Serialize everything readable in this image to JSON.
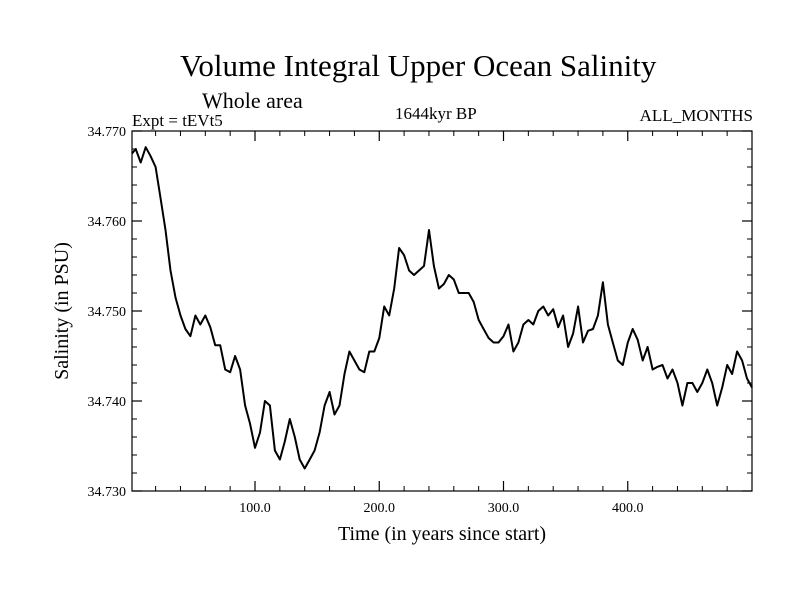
{
  "chart_data": {
    "type": "line",
    "title": "Volume Integral Upper Ocean Salinity",
    "subtitle": "Whole area",
    "header_left": "Expt = tEVt5",
    "header_center": "1644kyr BP",
    "header_right": "ALL_MONTHS",
    "xlabel": "Time (in years since start)",
    "ylabel": "Salinity (in PSU)",
    "xlim": [
      1,
      500
    ],
    "ylim": [
      34.73,
      34.77
    ],
    "x_ticks": [
      100,
      200,
      300,
      400
    ],
    "x_tick_labels": [
      "100.0",
      "200.0",
      "300.0",
      "400.0"
    ],
    "y_ticks": [
      34.73,
      34.74,
      34.75,
      34.76,
      34.77
    ],
    "y_tick_labels": [
      "34.730",
      "34.740",
      "34.750",
      "34.760",
      "34.770"
    ],
    "series": [
      {
        "name": "Salinity",
        "x": [
          1,
          4,
          8,
          12,
          16,
          20,
          24,
          28,
          32,
          36,
          40,
          44,
          48,
          52,
          56,
          60,
          64,
          68,
          72,
          76,
          80,
          84,
          88,
          92,
          96,
          100,
          104,
          108,
          112,
          116,
          120,
          124,
          128,
          132,
          136,
          140,
          144,
          148,
          152,
          156,
          160,
          164,
          168,
          172,
          176,
          180,
          184,
          188,
          192,
          196,
          200,
          204,
          208,
          212,
          216,
          220,
          224,
          228,
          232,
          236,
          240,
          244,
          248,
          252,
          256,
          260,
          264,
          268,
          272,
          276,
          280,
          284,
          288,
          292,
          296,
          300,
          304,
          308,
          312,
          316,
          320,
          324,
          328,
          332,
          336,
          340,
          344,
          348,
          352,
          356,
          360,
          364,
          368,
          372,
          376,
          380,
          384,
          388,
          392,
          396,
          400,
          404,
          408,
          412,
          416,
          420,
          424,
          428,
          432,
          436,
          440,
          444,
          448,
          452,
          456,
          460,
          464,
          468,
          472,
          476,
          480,
          484,
          488,
          492,
          496,
          500
        ],
        "values": [
          34.7675,
          34.768,
          34.7665,
          34.7682,
          34.7672,
          34.766,
          34.7625,
          34.759,
          34.7545,
          34.7515,
          34.7495,
          34.748,
          34.7472,
          34.7495,
          34.7485,
          34.7495,
          34.7482,
          34.7462,
          34.7462,
          34.7435,
          34.7432,
          34.745,
          34.7435,
          34.7395,
          34.7375,
          34.7348,
          34.7365,
          34.74,
          34.7395,
          34.7345,
          34.7335,
          34.7355,
          34.738,
          34.736,
          34.7335,
          34.7325,
          34.7335,
          34.7345,
          34.7365,
          34.7395,
          34.741,
          34.7385,
          34.7395,
          34.743,
          34.7455,
          34.7445,
          34.7435,
          34.7432,
          34.7455,
          34.7455,
          34.747,
          34.7505,
          34.7495,
          34.7525,
          34.757,
          34.7562,
          34.7545,
          34.754,
          34.7545,
          34.755,
          34.759,
          34.755,
          34.7525,
          34.753,
          34.754,
          34.7535,
          34.752,
          34.752,
          34.752,
          34.751,
          34.749,
          34.748,
          34.747,
          34.7465,
          34.7465,
          34.7472,
          34.7485,
          34.7455,
          34.7465,
          34.7485,
          34.749,
          34.7485,
          34.75,
          34.7505,
          34.7495,
          34.7502,
          34.7482,
          34.7495,
          34.746,
          34.7475,
          34.7505,
          34.7465,
          34.7478,
          34.748,
          34.7495,
          34.7532,
          34.7485,
          34.7465,
          34.7445,
          34.744,
          34.7465,
          34.748,
          34.7468,
          34.7445,
          34.746,
          34.7435,
          34.7438,
          34.744,
          34.7425,
          34.7435,
          34.742,
          34.7395,
          34.742,
          34.742,
          34.741,
          34.742,
          34.7435,
          34.742,
          34.7395,
          34.7415,
          34.744,
          34.743,
          34.7455,
          34.7445,
          34.7425,
          34.7415
        ]
      }
    ]
  }
}
